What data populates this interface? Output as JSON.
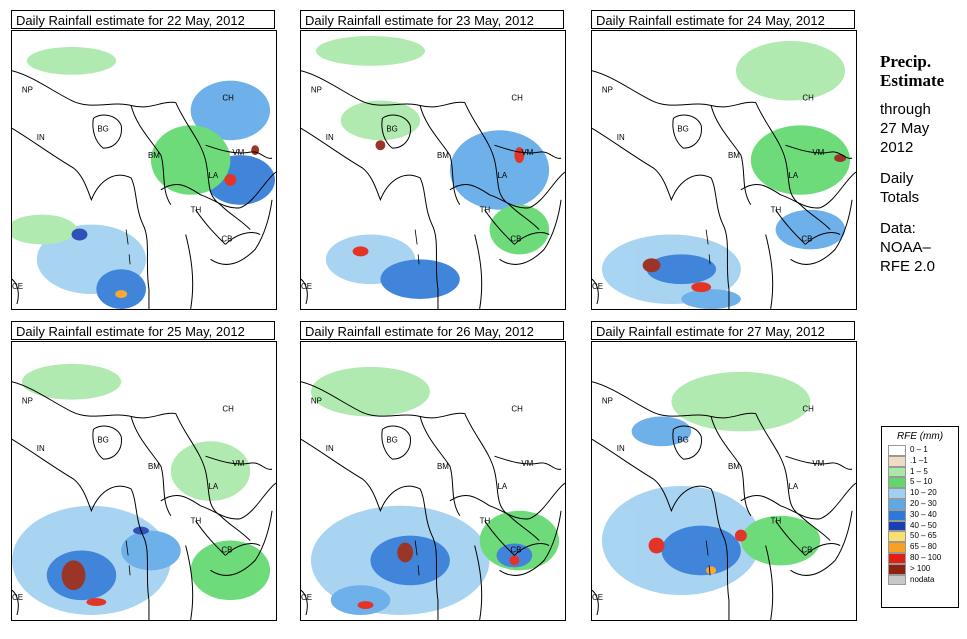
{
  "panels": [
    {
      "title": "Daily Rainfall estimate for  22 May, 2012"
    },
    {
      "title": "Daily Rainfall estimate for  23 May, 2012"
    },
    {
      "title": "Daily Rainfall estimate for  24 May, 2012"
    },
    {
      "title": "Daily Rainfall estimate for  25 May, 2012"
    },
    {
      "title": "Daily Rainfall estimate for  26 May, 2012"
    },
    {
      "title": "Daily Rainfall estimate for  27 May, 2012"
    }
  ],
  "country_labels": {
    "np": "NP",
    "ch": "CH",
    "in": "IN",
    "bg": "BG",
    "bm": "BM",
    "vm": "VM",
    "la": "LA",
    "th": "TH",
    "cb": "CB",
    "ce": "CE"
  },
  "sidebar": {
    "title_line1": "Precip.",
    "title_line2": "Estimate",
    "through": "through",
    "date_line1": "27 May",
    "date_line2": "2012",
    "totals_line1": "Daily",
    "totals_line2": "Totals",
    "data_line1": "Data:",
    "data_line2": "NOAA–",
    "data_line3": "RFE 2.0"
  },
  "legend": {
    "title": "RFE (mm)",
    "items": [
      {
        "label": "0 – 1",
        "color": "#ffffff"
      },
      {
        "label": ".1 –1",
        "color": "#eedcc4"
      },
      {
        "label": "1 – 5",
        "color": "#a8e8a8"
      },
      {
        "label": "5 – 10",
        "color": "#5fd86c"
      },
      {
        "label": "10 – 20",
        "color": "#9fd0f0"
      },
      {
        "label": "20 – 30",
        "color": "#5fa8e8"
      },
      {
        "label": "30 – 40",
        "color": "#2d78d8"
      },
      {
        "label": "40 – 50",
        "color": "#1a3fb0"
      },
      {
        "label": "50 – 65",
        "color": "#f8e070"
      },
      {
        "label": "65 – 80",
        "color": "#f8a020"
      },
      {
        "label": "80 – 100",
        "color": "#e02010"
      },
      {
        "label": "> 100",
        "color": "#902010"
      },
      {
        "label": "nodata",
        "color": "#c8c8c8"
      }
    ]
  }
}
